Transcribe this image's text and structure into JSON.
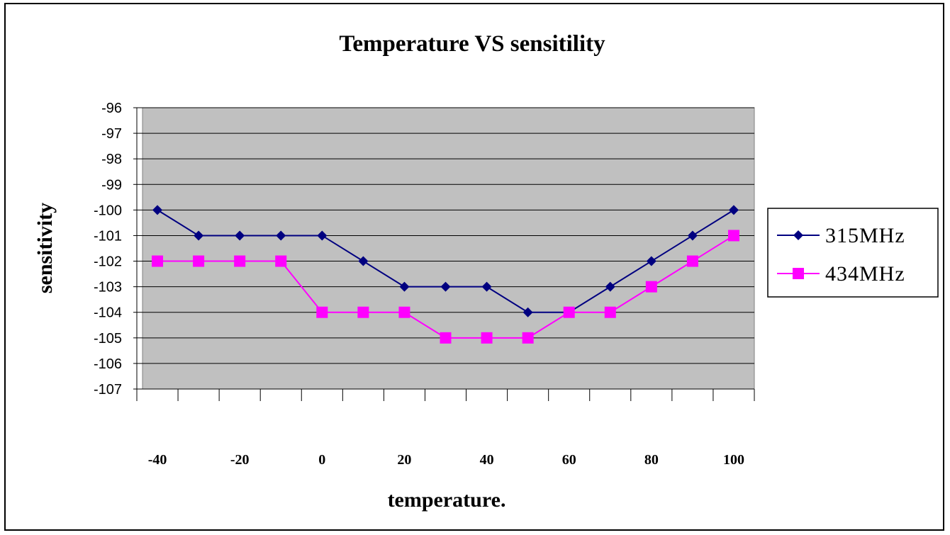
{
  "chart_data": {
    "type": "line",
    "title": "Temperature VS sensitility",
    "xlabel": "temperature.",
    "ylabel": "sensitivity",
    "ylim": [
      -107,
      -96
    ],
    "yticks": [
      "-96",
      "-97",
      "-98",
      "-99",
      "-100",
      "-101",
      "-102",
      "-103",
      "-104",
      "-105",
      "-106",
      "-107"
    ],
    "x_tick_labels": [
      "-40",
      "-20",
      "0",
      "20",
      "40",
      "60",
      "80",
      "100"
    ],
    "x": [
      -40,
      -30,
      -20,
      -10,
      0,
      10,
      20,
      30,
      40,
      50,
      60,
      70,
      80,
      90,
      100
    ],
    "grid": true,
    "legend_position": "right",
    "series": [
      {
        "name": "315MHz",
        "color": "#000080",
        "marker": "diamond",
        "values": [
          -100,
          -101,
          -101,
          -101,
          -101,
          -102,
          -103,
          -103,
          -103,
          -104,
          -104,
          -103,
          -102,
          -101,
          -100
        ]
      },
      {
        "name": "434MHz",
        "color": "#FF00FF",
        "marker": "square",
        "values": [
          -102,
          -102,
          -102,
          -102,
          -104,
          -104,
          -104,
          -105,
          -105,
          -105,
          -104,
          -104,
          -103,
          -102,
          -101
        ]
      }
    ],
    "colors": {
      "plot_background": "#C0C0C0",
      "gridline": "#000000"
    }
  }
}
